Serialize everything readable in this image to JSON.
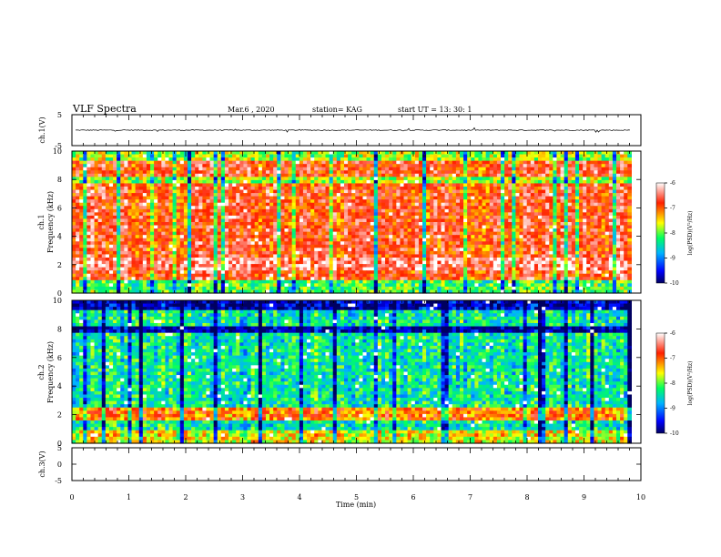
{
  "header": {
    "title": "VLF Spectra",
    "date": "Mar.6 , 2020",
    "station": "station= KAG",
    "start_ut": "start UT = 13: 30: 1"
  },
  "chart_data": [
    {
      "panel": "ch1-waveform",
      "type": "line",
      "ylabel": "ch.1(V)",
      "ylim": [
        -5,
        5
      ],
      "y_ticks": [
        "5",
        "-5"
      ],
      "baseline_value": 0,
      "noise_amplitude": 0.35
    },
    {
      "panel": "ch1-spectrogram",
      "type": "heatmap",
      "ylabel_line1": "ch.1",
      "ylabel_line2": "Frequency (kHz)",
      "ylim": [
        0,
        10
      ],
      "y_ticks": [
        "0",
        "2",
        "4",
        "6",
        "8",
        "10"
      ],
      "dominant_level": -6.8,
      "colorbar": {
        "label": "log(PSD)(V²/Hz)",
        "range": [
          -10,
          -6
        ],
        "ticks": [
          "-6",
          "-7",
          "-8",
          "-9",
          "-10"
        ]
      }
    },
    {
      "panel": "ch2-spectrogram",
      "type": "heatmap",
      "ylabel_line1": "ch.2",
      "ylabel_line2": "Frequency (kHz)",
      "ylim": [
        0,
        10
      ],
      "y_ticks": [
        "0",
        "2",
        "4",
        "6",
        "8",
        "10"
      ],
      "dominant_level": -8.4,
      "colorbar": {
        "label": "log(PSD)(V²/Hz)",
        "range": [
          -10,
          -6
        ],
        "ticks": [
          "-6",
          "-7",
          "-8",
          "-9",
          "-10"
        ]
      }
    },
    {
      "panel": "ch3-waveform",
      "type": "line",
      "ylabel": "ch.3(V)",
      "ylim": [
        -5,
        5
      ],
      "y_ticks": [
        "5",
        "0",
        "-5"
      ],
      "baseline_value": null
    }
  ],
  "x_axis": {
    "label": "Time (min)",
    "range": [
      0,
      10
    ],
    "ticks": [
      "0",
      "1",
      "2",
      "3",
      "4",
      "5",
      "6",
      "7",
      "8",
      "9",
      "10"
    ],
    "data_end": 9.83
  }
}
